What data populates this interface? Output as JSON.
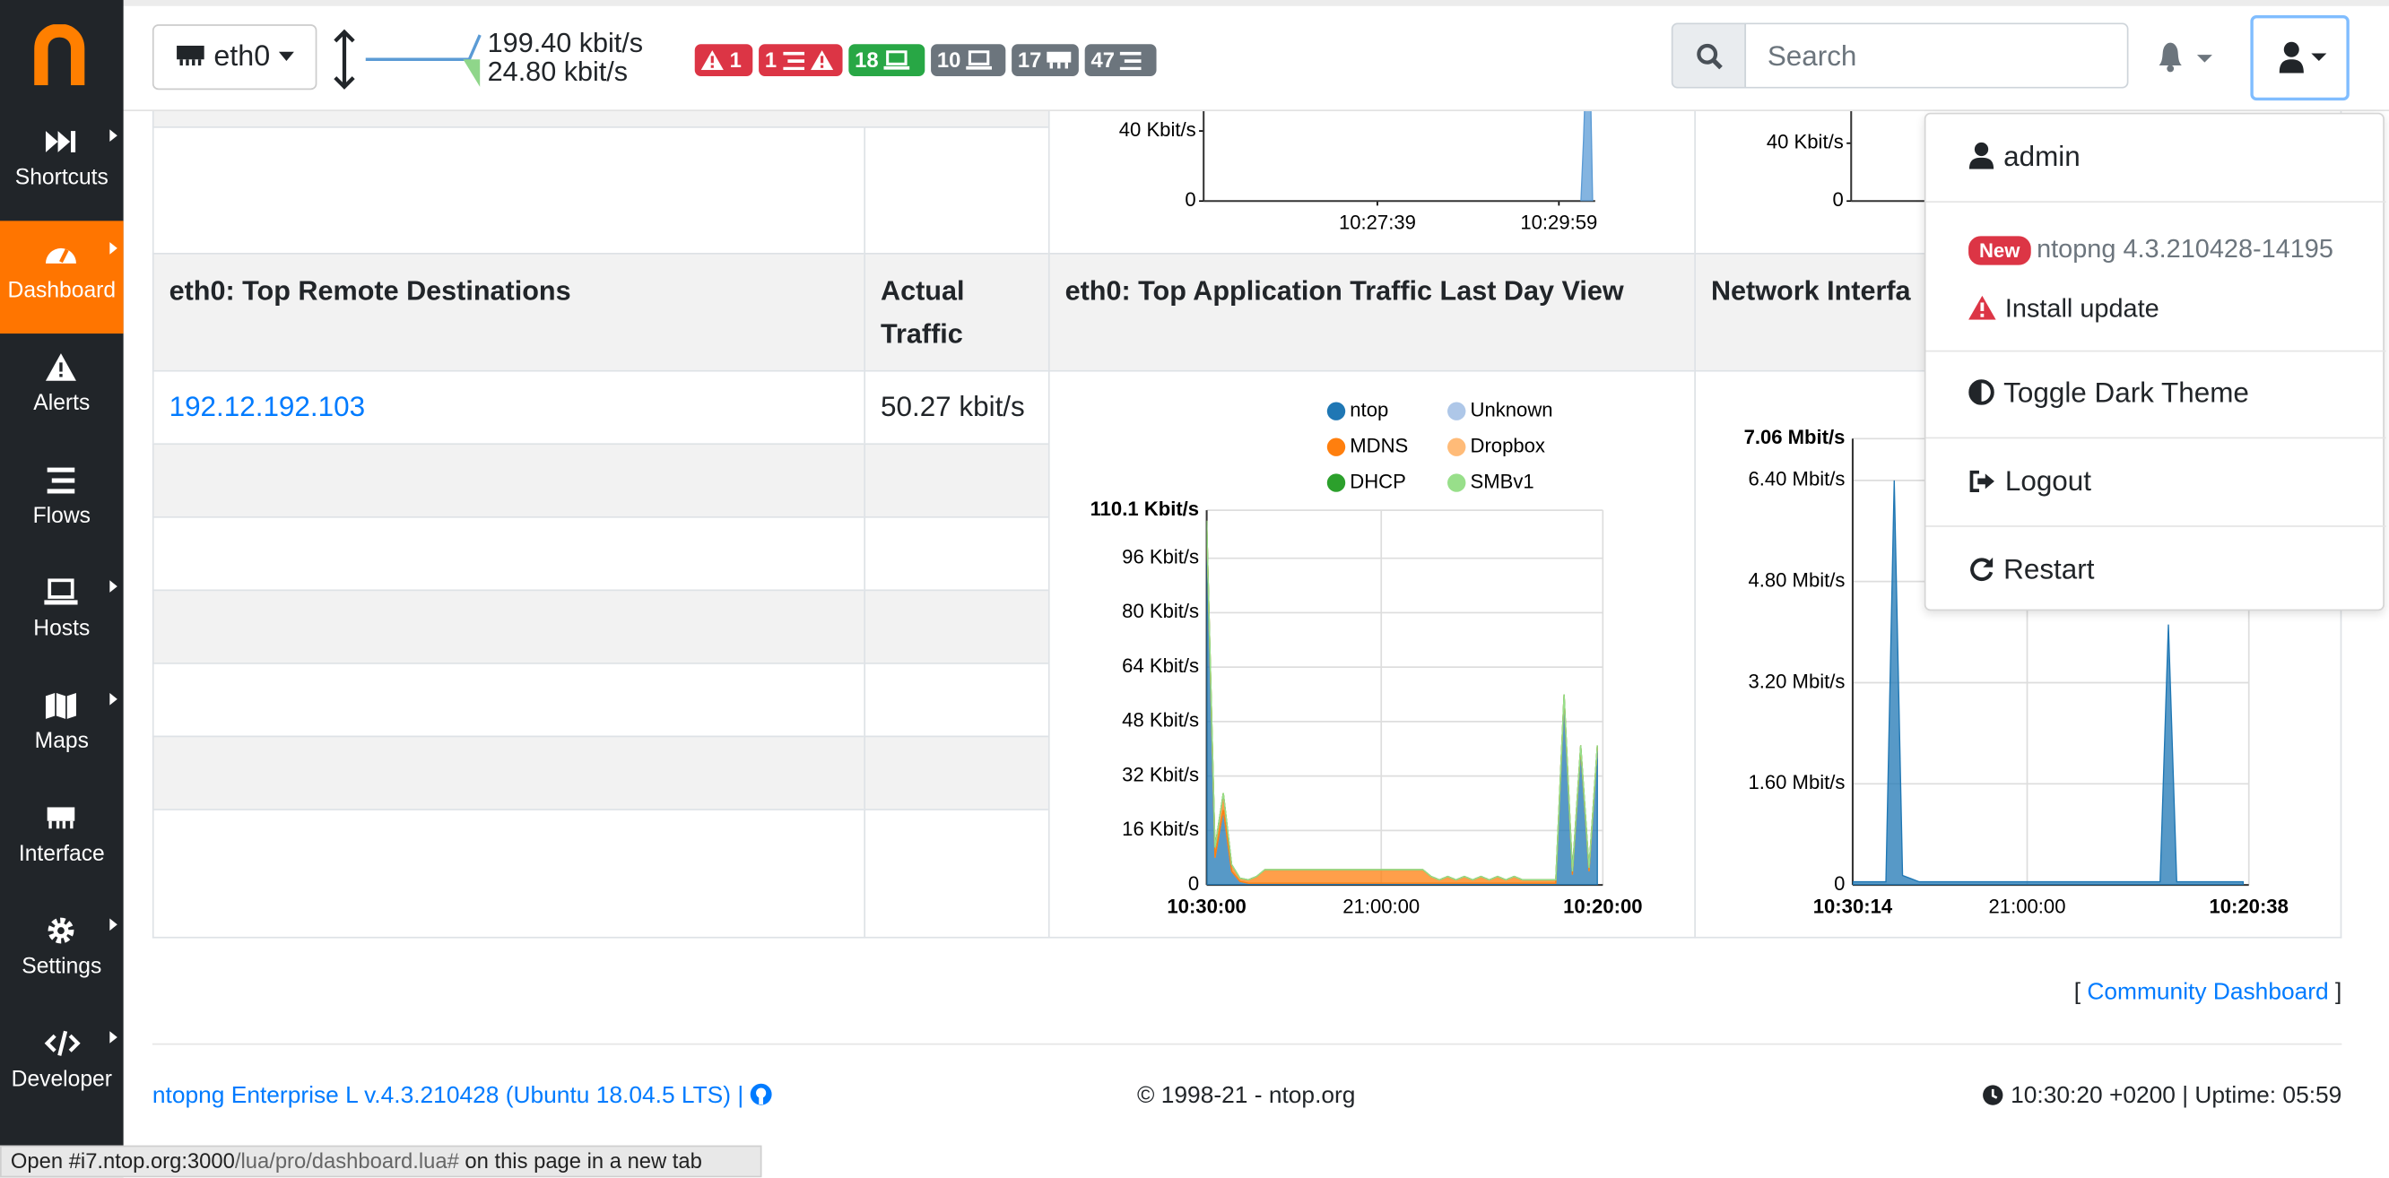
{
  "sidebar": {
    "items": [
      "Shortcuts",
      "Dashboard",
      "Alerts",
      "Flows",
      "Hosts",
      "Maps",
      "Interface",
      "Settings",
      "Developer"
    ]
  },
  "navbar": {
    "interface": "eth0",
    "upload": "199.40 kbit/s",
    "download": "24.80 kbit/s",
    "badges": [
      "1",
      "1",
      "18",
      "10",
      "17",
      "47"
    ],
    "search_placeholder": "Search"
  },
  "user_menu": {
    "user": "admin",
    "new_badge": "New",
    "version": "ntopng 4.3.210428-14195",
    "install_update": "Install update",
    "toggle_dark": "Toggle Dark Theme",
    "logout": "Logout",
    "restart": "Restart"
  },
  "top_chart_left": {
    "type": "area",
    "xlim": [
      -134,
      168
    ],
    "ylim": [
      0,
      53.9
    ],
    "xticks": [
      {
        "value": 0,
        "label": "10:27:39"
      },
      {
        "value": 140,
        "label": "10:29:59"
      }
    ],
    "yticks": [
      0,
      {
        "value": 40,
        "label": "40 Kbit/s"
      }
    ],
    "x": [
      157,
      159,
      161,
      164,
      166
    ],
    "series": [
      {
        "color": "#5b9bd5",
        "values": [
          0,
          35,
          80,
          80,
          0
        ]
      }
    ]
  },
  "top_chart_right": {
    "type": "area",
    "ylim": [
      0,
      65.3
    ],
    "yticks": [
      0,
      {
        "value": 40,
        "label": "40 Kbit/s"
      }
    ]
  },
  "table": {
    "headers": [
      "eth0: Top Remote Destinations",
      "Actual Traffic",
      "eth0: Top Application Traffic Last Day View",
      "Network Interfa"
    ],
    "rows": [
      [
        "192.12.192.103",
        "50.27 kbit/s"
      ]
    ]
  },
  "app_chart": {
    "type": "area",
    "stacked": true,
    "grid": true,
    "xlim": [
      0,
      23.83
    ],
    "ylim": [
      0,
      110.1
    ],
    "xticks": [
      {
        "value": 0,
        "label": "10:30:00"
      },
      {
        "value": 10.5,
        "label": "21:00:00"
      },
      {
        "value": 23.83,
        "label": "10:20:00"
      }
    ],
    "yticks": [
      0,
      {
        "value": 16,
        "label": "16 Kbit/s"
      },
      {
        "value": 32,
        "label": "32 Kbit/s"
      },
      {
        "value": 48,
        "label": "48 Kbit/s"
      },
      {
        "value": 64,
        "label": "64 Kbit/s"
      },
      {
        "value": 80,
        "label": "80 Kbit/s"
      },
      {
        "value": 96,
        "label": "96 Kbit/s"
      },
      {
        "value": 110.1,
        "label": "110.1 Kbit/s"
      }
    ],
    "x": [
      0,
      0.5,
      1,
      1.5,
      2,
      2.5,
      3,
      3.5,
      4,
      4.5,
      5,
      5.5,
      6,
      6.5,
      7,
      7.5,
      8,
      8.5,
      9,
      9.5,
      10,
      10.5,
      11,
      11.5,
      12,
      12.5,
      13,
      13.5,
      14,
      14.5,
      15,
      15.5,
      16,
      16.5,
      17,
      17.5,
      18,
      18.5,
      19,
      19.5,
      20,
      20.5,
      21,
      21.5,
      22,
      22.5,
      23,
      23.5
    ],
    "series": [
      {
        "name": "ntop",
        "color": "#1f77b4",
        "values": [
          105,
          8,
          22,
          4,
          1,
          0.5,
          0.5,
          0.5,
          0.5,
          0.5,
          0.5,
          0.5,
          0.5,
          0.5,
          0.5,
          0.5,
          0.5,
          0.5,
          0.5,
          0.5,
          0.5,
          0.5,
          0.5,
          0.5,
          0.5,
          0.5,
          0.5,
          0.5,
          0.5,
          0.5,
          0.5,
          0.5,
          0.5,
          0.5,
          0.5,
          0.5,
          0.5,
          0.5,
          0.5,
          0.5,
          0.5,
          0.5,
          0.5,
          55,
          3,
          40,
          4,
          40
        ]
      },
      {
        "name": "Unknown",
        "color": "#aec7e8",
        "values": [
          0,
          0,
          0,
          0,
          0,
          0,
          0,
          0,
          0,
          0,
          0,
          0,
          0,
          0,
          0,
          0,
          0,
          0,
          0,
          0,
          0,
          0,
          0,
          0,
          0,
          0,
          0,
          0,
          0,
          0,
          0,
          0,
          0,
          0,
          0,
          0,
          0,
          0,
          0,
          0,
          0,
          0,
          0,
          0,
          0,
          0,
          0,
          0
        ]
      },
      {
        "name": "MDNS",
        "color": "#ff7f0e",
        "values": [
          2,
          3,
          5,
          2,
          1,
          1,
          2,
          4,
          4,
          4,
          4,
          4,
          4,
          4,
          4,
          4,
          4,
          4,
          4,
          4,
          4,
          4,
          4,
          4,
          4,
          4,
          4,
          2,
          1,
          2,
          1,
          2,
          1,
          2,
          1,
          2,
          1,
          2,
          1,
          1,
          1,
          1,
          1,
          1,
          1,
          1,
          1,
          1
        ]
      },
      {
        "name": "Dropbox",
        "color": "#ffbb78",
        "values": [
          0,
          0,
          0,
          0,
          0,
          0,
          0,
          0,
          0,
          0,
          0,
          0,
          0,
          0,
          0,
          0,
          0,
          0,
          0,
          0,
          0,
          0,
          0,
          0,
          0,
          0,
          0,
          0,
          0,
          0,
          0,
          0,
          0,
          0,
          0,
          0,
          0,
          0,
          0,
          0,
          0,
          0,
          0,
          0,
          0,
          0,
          0,
          0
        ]
      },
      {
        "name": "DHCP",
        "color": "#2ca02c",
        "values": [
          0,
          0,
          0,
          0,
          0,
          0,
          0,
          0,
          0,
          0,
          0,
          0,
          0,
          0,
          0,
          0,
          0,
          0,
          0,
          0,
          0,
          0,
          0,
          0,
          0,
          0,
          0,
          0,
          0,
          0,
          0,
          0,
          0,
          0,
          0,
          0,
          0,
          0,
          0,
          0,
          0,
          0,
          0,
          0,
          0,
          0,
          0,
          0
        ]
      },
      {
        "name": "SMBv1",
        "color": "#98df8a",
        "values": [
          0,
          0,
          0,
          0,
          0,
          0,
          0,
          0,
          0,
          0,
          0,
          0,
          0,
          0,
          0,
          0,
          0,
          0,
          0,
          0,
          0,
          0,
          0,
          0,
          0,
          0,
          0,
          0,
          0,
          0,
          0,
          0,
          0,
          0,
          0,
          0,
          0,
          0,
          0,
          0,
          0,
          0,
          0,
          0,
          0,
          0,
          0,
          0
        ]
      }
    ]
  },
  "iface_chart": {
    "type": "area",
    "grid": true,
    "xlim": [
      0,
      23.84
    ],
    "ylim": [
      0,
      7.06
    ],
    "xticks": [
      {
        "value": 0,
        "label": "10:30:14"
      },
      {
        "value": 10.5,
        "label": "21:00:00"
      },
      {
        "value": 23.84,
        "label": "10:20:38"
      }
    ],
    "yticks": [
      0,
      {
        "value": 1.6,
        "label": "1.60 Mbit/s"
      },
      {
        "value": 3.2,
        "label": "3.20 Mbit/s"
      },
      {
        "value": 4.8,
        "label": "4.80 Mbit/s"
      },
      {
        "value": 6.4,
        "label": "6.40 Mbit/s"
      },
      {
        "value": 7.06,
        "label": "7.06 Mbit/s"
      }
    ],
    "x": [
      0,
      0.5,
      1,
      1.5,
      2,
      2.5,
      3,
      3.5,
      4,
      4.5,
      5,
      5.5,
      6,
      6.5,
      7,
      7.5,
      8,
      8.5,
      9,
      9.5,
      10,
      10.5,
      11,
      11.5,
      12,
      12.5,
      13,
      13.5,
      14,
      14.5,
      15,
      15.5,
      16,
      16.5,
      17,
      17.5,
      18,
      18.5,
      19,
      19.5,
      20,
      20.5,
      21,
      21.5,
      22,
      22.5,
      23,
      23.5
    ],
    "series": [
      {
        "color": "#1f77b4",
        "values": [
          0.05,
          0.05,
          0.05,
          0.05,
          0.05,
          6.4,
          0.15,
          0.1,
          0.05,
          0.05,
          0.05,
          0.05,
          0.05,
          0.05,
          0.05,
          0.05,
          0.05,
          0.05,
          0.05,
          0.05,
          0.05,
          0.05,
          0.05,
          0.05,
          0.05,
          0.05,
          0.05,
          0.05,
          0.05,
          0.05,
          0.05,
          0.05,
          0.05,
          0.05,
          0.05,
          0.05,
          0.05,
          0.05,
          4.12,
          0.05,
          0.05,
          0.05,
          0.05,
          0.05,
          0.05,
          0.05,
          0.05,
          0.05
        ]
      }
    ]
  },
  "community": {
    "open": "[",
    "link": "Community Dashboard",
    "close": "]"
  },
  "footer": {
    "version": "ntopng Enterprise L v.4.3.210428 (Ubuntu 18.04.5 LTS) |",
    "copyright": "© 1998-21 - ntop.org",
    "time": "10:30:20 +0200 | Uptime: 05:59"
  },
  "status_bar": {
    "open": "Open #i7.ntop.org:3000",
    "path": "/lua/pro/dashboard.lua#",
    "rest": " on this page in a new tab"
  }
}
